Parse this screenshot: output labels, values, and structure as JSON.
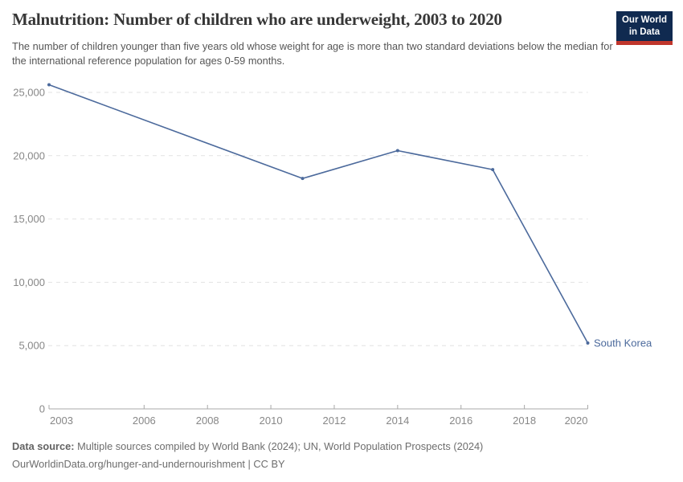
{
  "header": {
    "title": "Malnutrition: Number of children who are underweight, 2003 to 2020",
    "subtitle": "The number of children younger than five years old whose weight for age is more than two standard deviations below the median for the international reference population for ages 0-59 months.",
    "logo": {
      "line1": "Our World",
      "line2": "in Data"
    }
  },
  "chart_data": {
    "type": "line",
    "title": "Malnutrition: Number of children who are underweight, 2003 to 2020",
    "entity_label": "South Korea",
    "series": [
      {
        "name": "South Korea",
        "color": "#4c6a9c",
        "points": [
          {
            "x": 2003,
            "y": 25600
          },
          {
            "x": 2011,
            "y": 18200
          },
          {
            "x": 2014,
            "y": 20400
          },
          {
            "x": 2017,
            "y": 18900
          },
          {
            "x": 2020,
            "y": 5200
          }
        ]
      }
    ],
    "x_axis": {
      "lim": [
        2003,
        2020
      ],
      "tick_years": [
        2003,
        2006,
        2008,
        2010,
        2012,
        2014,
        2016,
        2018,
        2020
      ]
    },
    "y_axis": {
      "lim": [
        0,
        26000
      ],
      "grid": "dashed-horizontal",
      "ticks": [
        {
          "value": 0,
          "label": "0"
        },
        {
          "value": 5000,
          "label": "5,000"
        },
        {
          "value": 10000,
          "label": "10,000"
        },
        {
          "value": 15000,
          "label": "15,000"
        },
        {
          "value": 20000,
          "label": "20,000"
        },
        {
          "value": 25000,
          "label": "25,000"
        }
      ]
    },
    "legend_position": "label-at-line-end"
  },
  "footer": {
    "datasource_label": "Data source:",
    "datasource_text": " Multiple sources compiled by World Bank (2024); UN, World Population Prospects (2024)",
    "url_line": "OurWorldinData.org/hunger-and-undernourishment | CC BY"
  },
  "colors": {
    "line": "#4c6a9c",
    "entity_label": "#4c6a9c",
    "gridline": "#e2e2e2",
    "axis": "#a8a8a8",
    "tick_label": "#878787",
    "title": "#373737",
    "subtitle": "#565656",
    "footer": "#6d6d6d",
    "logo_bg": "#102a50",
    "logo_stripe": "#c0362c"
  }
}
